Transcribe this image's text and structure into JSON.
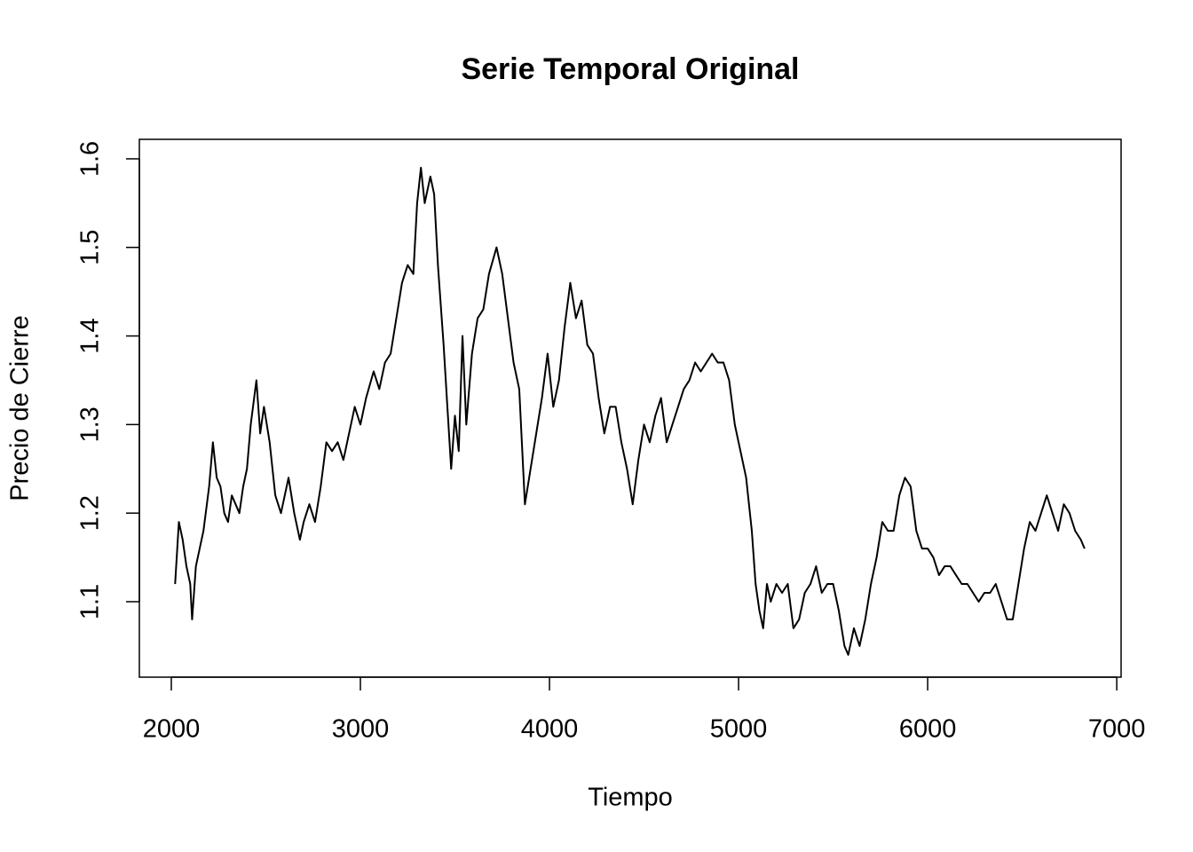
{
  "chart_data": {
    "type": "line",
    "title": "Serie Temporal Original",
    "x_label": "Tiempo",
    "y_label": "Precio de Cierre",
    "color": "#000000",
    "xlim": [
      1831,
      7023
    ],
    "ylim": [
      1.0148,
      1.622
    ],
    "xticks": [
      2000,
      3000,
      4000,
      5000,
      6000,
      7000
    ],
    "yticks": [
      1.1,
      1.2,
      1.3,
      1.4,
      1.5,
      1.6
    ],
    "x": [
      2020,
      2040,
      2060,
      2080,
      2100,
      2110,
      2130,
      2150,
      2170,
      2200,
      2220,
      2240,
      2260,
      2280,
      2300,
      2320,
      2340,
      2360,
      2380,
      2400,
      2420,
      2450,
      2470,
      2490,
      2520,
      2550,
      2580,
      2600,
      2620,
      2650,
      2680,
      2700,
      2730,
      2760,
      2790,
      2820,
      2850,
      2880,
      2910,
      2940,
      2970,
      3000,
      3030,
      3070,
      3100,
      3130,
      3160,
      3190,
      3220,
      3250,
      3280,
      3300,
      3320,
      3340,
      3370,
      3390,
      3410,
      3440,
      3460,
      3480,
      3500,
      3520,
      3540,
      3560,
      3590,
      3620,
      3650,
      3680,
      3720,
      3750,
      3780,
      3810,
      3840,
      3870,
      3900,
      3930,
      3960,
      3990,
      4020,
      4050,
      4080,
      4110,
      4140,
      4170,
      4200,
      4230,
      4260,
      4290,
      4320,
      4350,
      4380,
      4410,
      4440,
      4470,
      4500,
      4530,
      4560,
      4590,
      4620,
      4650,
      4680,
      4710,
      4740,
      4770,
      4800,
      4830,
      4860,
      4890,
      4920,
      4950,
      4980,
      5010,
      5040,
      5070,
      5090,
      5110,
      5130,
      5150,
      5170,
      5200,
      5230,
      5260,
      5290,
      5320,
      5350,
      5380,
      5410,
      5440,
      5470,
      5500,
      5530,
      5560,
      5580,
      5610,
      5640,
      5670,
      5700,
      5730,
      5760,
      5790,
      5820,
      5850,
      5880,
      5910,
      5940,
      5970,
      6000,
      6030,
      6060,
      6090,
      6120,
      6150,
      6180,
      6210,
      6240,
      6270,
      6300,
      6330,
      6360,
      6390,
      6420,
      6450,
      6480,
      6510,
      6540,
      6570,
      6600,
      6630,
      6660,
      6690,
      6720,
      6750,
      6780,
      6810,
      6830
    ],
    "values": [
      1.12,
      1.19,
      1.17,
      1.14,
      1.12,
      1.08,
      1.14,
      1.16,
      1.18,
      1.23,
      1.28,
      1.24,
      1.23,
      1.2,
      1.19,
      1.22,
      1.21,
      1.2,
      1.23,
      1.25,
      1.3,
      1.35,
      1.29,
      1.32,
      1.28,
      1.22,
      1.2,
      1.22,
      1.24,
      1.2,
      1.17,
      1.19,
      1.21,
      1.19,
      1.23,
      1.28,
      1.27,
      1.28,
      1.26,
      1.29,
      1.32,
      1.3,
      1.33,
      1.36,
      1.34,
      1.37,
      1.38,
      1.42,
      1.46,
      1.48,
      1.47,
      1.55,
      1.59,
      1.55,
      1.58,
      1.56,
      1.48,
      1.39,
      1.32,
      1.25,
      1.31,
      1.27,
      1.4,
      1.3,
      1.38,
      1.42,
      1.43,
      1.47,
      1.5,
      1.47,
      1.42,
      1.37,
      1.34,
      1.21,
      1.25,
      1.29,
      1.33,
      1.38,
      1.32,
      1.35,
      1.41,
      1.46,
      1.42,
      1.44,
      1.39,
      1.38,
      1.33,
      1.29,
      1.32,
      1.32,
      1.28,
      1.25,
      1.21,
      1.26,
      1.3,
      1.28,
      1.31,
      1.33,
      1.28,
      1.3,
      1.32,
      1.34,
      1.35,
      1.37,
      1.36,
      1.37,
      1.38,
      1.37,
      1.37,
      1.35,
      1.3,
      1.27,
      1.24,
      1.18,
      1.12,
      1.09,
      1.07,
      1.12,
      1.1,
      1.12,
      1.11,
      1.12,
      1.07,
      1.08,
      1.11,
      1.12,
      1.14,
      1.11,
      1.12,
      1.12,
      1.09,
      1.05,
      1.04,
      1.07,
      1.05,
      1.08,
      1.12,
      1.15,
      1.19,
      1.18,
      1.18,
      1.22,
      1.24,
      1.23,
      1.18,
      1.16,
      1.16,
      1.15,
      1.13,
      1.14,
      1.14,
      1.13,
      1.12,
      1.12,
      1.11,
      1.1,
      1.11,
      1.11,
      1.12,
      1.1,
      1.08,
      1.08,
      1.12,
      1.16,
      1.19,
      1.18,
      1.2,
      1.22,
      1.2,
      1.18,
      1.21,
      1.2,
      1.18,
      1.17,
      1.16
    ]
  }
}
